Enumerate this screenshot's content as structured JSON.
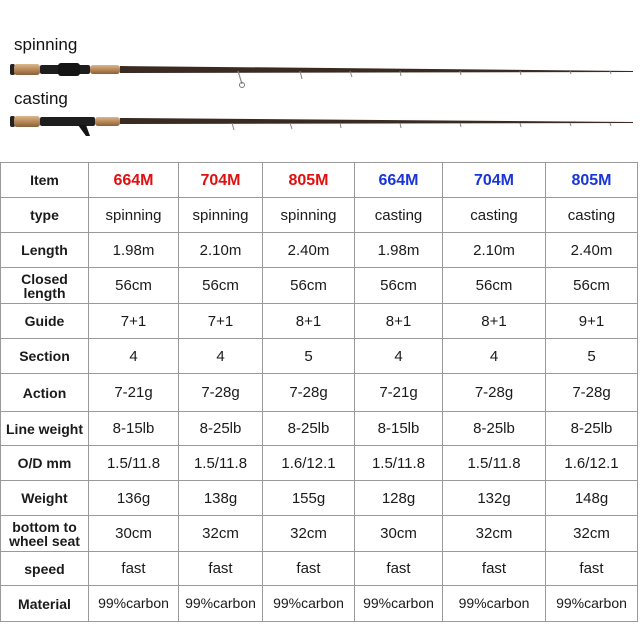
{
  "labels": {
    "spinning": "spinning",
    "casting": "casting"
  },
  "colors": {
    "red_model": "#e01010",
    "blue_model": "#1a35d8",
    "border": "#9a9a9a"
  },
  "table": {
    "header": {
      "item": "Item",
      "models": [
        "664M",
        "704M",
        "805M",
        "664M",
        "704M",
        "805M"
      ]
    },
    "rows": [
      {
        "label": "type",
        "values": [
          "spinning",
          "spinning",
          "spinning",
          "casting",
          "casting",
          "casting"
        ]
      },
      {
        "label": "Length",
        "values": [
          "1.98m",
          "2.10m",
          "2.40m",
          "1.98m",
          "2.10m",
          "2.40m"
        ]
      },
      {
        "label": "Closed length",
        "values": [
          "56cm",
          "56cm",
          "56cm",
          "56cm",
          "56cm",
          "56cm"
        ]
      },
      {
        "label": "Guide",
        "values": [
          "7+1",
          "7+1",
          "8+1",
          "8+1",
          "8+1",
          "9+1"
        ]
      },
      {
        "label": "Section",
        "values": [
          "4",
          "4",
          "5",
          "4",
          "4",
          "5"
        ]
      },
      {
        "label": "Action",
        "values": [
          "7-21g",
          "7-28g",
          "7-28g",
          "7-21g",
          "7-28g",
          "7-28g"
        ]
      },
      {
        "label": "Line weight",
        "values": [
          "8-15lb",
          "8-25lb",
          "8-25lb",
          "8-15lb",
          "8-25lb",
          "8-25lb"
        ]
      },
      {
        "label": "O/D mm",
        "values": [
          "1.5/11.8",
          "1.5/11.8",
          "1.6/12.1",
          "1.5/11.8",
          "1.5/11.8",
          "1.6/12.1"
        ]
      },
      {
        "label": "Weight",
        "values": [
          "136g",
          "138g",
          "155g",
          "128g",
          "132g",
          "148g"
        ]
      },
      {
        "label": "bottom to wheel seat",
        "values": [
          "30cm",
          "32cm",
          "32cm",
          "30cm",
          "32cm",
          "32cm"
        ]
      },
      {
        "label": "speed",
        "values": [
          "fast",
          "fast",
          "fast",
          "fast",
          "fast",
          "fast"
        ]
      },
      {
        "label": "Material",
        "values": [
          "99%carbon",
          "99%carbon",
          "99%carbon",
          "99%carbon",
          "99%carbon",
          "99%carbon"
        ]
      }
    ]
  }
}
